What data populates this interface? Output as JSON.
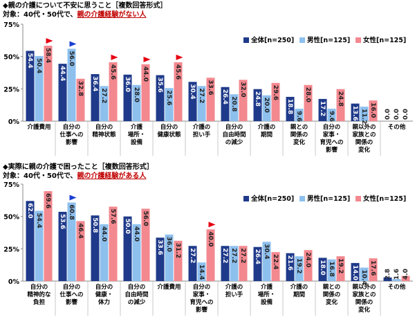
{
  "colors": {
    "total": "#1f3a8a",
    "male": "#8ec0ee",
    "female": "#f3888f",
    "arrow_red": "#e60012",
    "arrow_blue": "#1a3fd0"
  },
  "chart_data": [
    {
      "type": "bar",
      "title": "◆親の介護について不安に思うこと［複数回答形式］",
      "subtitle": {
        "prefix": "対象：40代・50代で、",
        "emph": "親の介護経験がない人"
      },
      "ylim": [
        0,
        75
      ],
      "yticks": [
        "0%",
        "25%",
        "50%",
        "75%"
      ],
      "legend": [
        "全体[n=250]",
        "男性[n=125]",
        "女性[n=125]"
      ],
      "categories": [
        [
          "介護費用"
        ],
        [
          "自分の",
          "仕事への",
          "影響"
        ],
        [
          "自分の",
          "精神状態"
        ],
        [
          "介護",
          "場所・",
          "設備"
        ],
        [
          "自分の",
          "健康状態"
        ],
        [
          "介護の",
          "担い手"
        ],
        [
          "自分の",
          "自由時間",
          "の減少"
        ],
        [
          "介護の",
          "期間"
        ],
        [
          "親との",
          "関係の",
          "変化"
        ],
        [
          "自分の",
          "家事・",
          "育児への",
          "影響"
        ],
        [
          "親以外の",
          "家族との",
          "関係の",
          "変化"
        ],
        [
          "その他"
        ]
      ],
      "series": [
        {
          "name": "全体[n=250]",
          "values": [
            54.4,
            44.4,
            36.4,
            36.0,
            35.6,
            30.4,
            26.4,
            24.8,
            18.8,
            17.2,
            13.6,
            0.0
          ]
        },
        {
          "name": "男性[n=125]",
          "values": [
            50.4,
            56.0,
            27.2,
            28.0,
            25.6,
            27.2,
            20.8,
            20.0,
            9.6,
            9.6,
            11.2,
            0.0
          ]
        },
        {
          "name": "女性[n=125]",
          "values": [
            58.4,
            32.8,
            45.6,
            44.0,
            45.6,
            33.6,
            32.0,
            29.6,
            28.0,
            24.8,
            16.0,
            0.0
          ]
        }
      ],
      "arrows": [
        {
          "category": 0,
          "series": 2,
          "color": "red"
        },
        {
          "category": 1,
          "series": 1,
          "color": "blue"
        },
        {
          "category": 2,
          "series": 2,
          "color": "red"
        },
        {
          "category": 3,
          "series": 2,
          "color": "red"
        },
        {
          "category": 4,
          "series": 2,
          "color": "red"
        }
      ]
    },
    {
      "type": "bar",
      "title": "◆実際に親の介護で困ったこと［複数回答形式］",
      "subtitle": {
        "prefix": "対象：40代・50代で、",
        "emph": "親の介護経験がある人"
      },
      "ylim": [
        0,
        75
      ],
      "yticks": [
        "0%",
        "25%",
        "50%",
        "75%"
      ],
      "legend": [
        "全体[n=250]",
        "男性[n=125]",
        "女性[n=125]"
      ],
      "categories": [
        [
          "自分の",
          "精神的な",
          "負担"
        ],
        [
          "自分の",
          "仕事への",
          "影響"
        ],
        [
          "自分の",
          "健康・",
          "体力"
        ],
        [
          "自分の",
          "自由時間",
          "の減少"
        ],
        [
          "介護費用"
        ],
        [
          "自分の",
          "家事・",
          "育児への",
          "影響"
        ],
        [
          "介護の",
          "担い手"
        ],
        [
          "介護",
          "場所・",
          "設備"
        ],
        [
          "介護の",
          "期間"
        ],
        [
          "親との",
          "関係の",
          "変化"
        ],
        [
          "親以外の",
          "家族との",
          "関係の",
          "変化"
        ],
        [
          "その他"
        ]
      ],
      "series": [
        {
          "name": "全体[n=250]",
          "values": [
            62.0,
            53.6,
            50.8,
            50.0,
            33.6,
            27.2,
            27.2,
            26.4,
            21.6,
            18.0,
            14.0,
            2.8
          ]
        },
        {
          "name": "男性[n=125]",
          "values": [
            54.4,
            60.8,
            44.0,
            44.0,
            36.0,
            14.4,
            27.2,
            30.4,
            19.2,
            16.8,
            10.4,
            1.6
          ]
        },
        {
          "name": "女性[n=125]",
          "values": [
            69.6,
            46.4,
            57.6,
            56.0,
            31.2,
            40.0,
            27.2,
            22.4,
            24.0,
            19.2,
            17.6,
            4.0
          ]
        }
      ],
      "arrows": [
        {
          "category": 1,
          "series": 1,
          "color": "blue"
        },
        {
          "category": 5,
          "series": 2,
          "color": "red"
        }
      ]
    }
  ]
}
